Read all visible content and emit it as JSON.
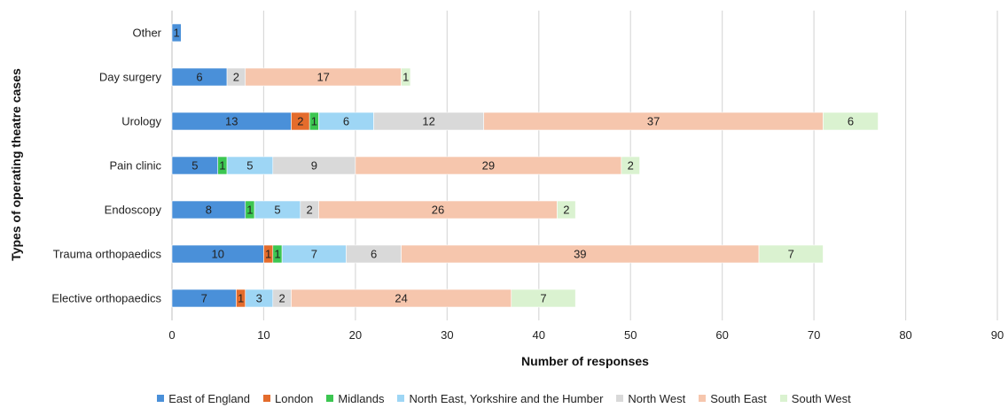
{
  "chart_data": {
    "type": "bar",
    "orientation": "horizontal",
    "stacked": true,
    "title": "",
    "xlabel": "Number of responses",
    "ylabel": "Types of operating theatre cases",
    "xlim": [
      0,
      90
    ],
    "xticks": [
      0,
      10,
      20,
      30,
      40,
      50,
      60,
      70,
      80,
      90
    ],
    "grid": "vertical",
    "legend_position": "bottom",
    "categories": [
      "Other",
      "Day surgery",
      "Urology",
      "Pain clinic",
      "Endoscopy",
      "Trauma orthopaedics",
      "Elective orthopaedics"
    ],
    "series": [
      {
        "name": "East of England",
        "color": "#4A90D9",
        "values": [
          1,
          6,
          13,
          5,
          8,
          10,
          7
        ]
      },
      {
        "name": "London",
        "color": "#E46C2C",
        "values": [
          0,
          0,
          2,
          0,
          0,
          1,
          1
        ]
      },
      {
        "name": "Midlands",
        "color": "#3CC651",
        "values": [
          0,
          0,
          1,
          1,
          1,
          1,
          0
        ]
      },
      {
        "name": "North East, Yorkshire and the Humber",
        "color": "#9ED6F5",
        "values": [
          0,
          0,
          6,
          5,
          5,
          7,
          3
        ]
      },
      {
        "name": "North West",
        "color": "#D9D9D9",
        "values": [
          0,
          2,
          12,
          9,
          2,
          6,
          2
        ]
      },
      {
        "name": "South East",
        "color": "#F6C6AD",
        "values": [
          0,
          17,
          37,
          29,
          26,
          39,
          24
        ]
      },
      {
        "name": "South West",
        "color": "#DAF2D0",
        "values": [
          0,
          1,
          6,
          2,
          2,
          7,
          7
        ]
      }
    ]
  }
}
